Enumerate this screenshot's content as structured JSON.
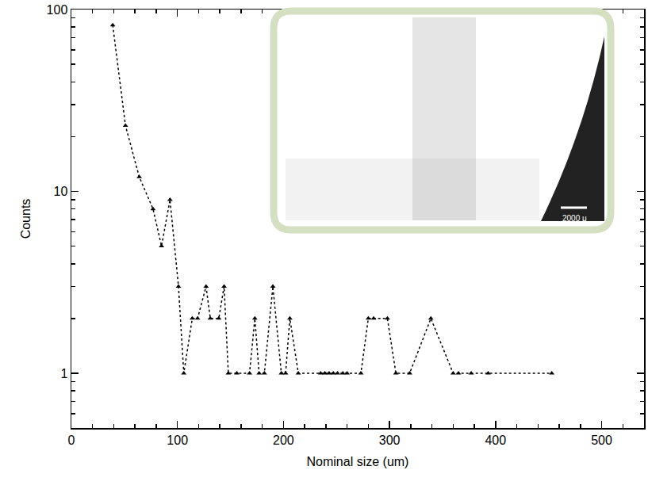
{
  "chart_data": {
    "type": "line",
    "x": [
      39,
      51,
      64,
      77,
      85,
      93,
      101,
      106,
      114,
      119,
      127,
      131,
      139,
      144,
      148,
      156,
      168,
      173,
      177,
      182,
      190,
      198,
      202,
      206,
      214,
      235,
      239,
      243,
      247,
      251,
      256,
      260,
      273,
      280,
      285,
      298,
      306,
      319,
      339,
      360,
      365,
      377,
      393,
      453
    ],
    "values": [
      82,
      23,
      12,
      8,
      5,
      9,
      3,
      1,
      2,
      2,
      3,
      2,
      2,
      3,
      1,
      1,
      1,
      2,
      1,
      1,
      3,
      1,
      1,
      2,
      1,
      1,
      1,
      1,
      1,
      1,
      1,
      1,
      1,
      2,
      2,
      2,
      1,
      1,
      2,
      1,
      1,
      1,
      1,
      1
    ],
    "xlabel": "Nominal size (um)",
    "ylabel": "Counts",
    "xlim": [
      0,
      540
    ],
    "xticks": [
      0,
      100,
      200,
      300,
      400,
      500
    ],
    "ylim": [
      0.5,
      100
    ],
    "yticks": [
      1,
      10,
      100
    ],
    "log": "y",
    "marker": "triangle",
    "line_style": "dotted",
    "color": "#000000",
    "annotations": [
      "2000 μ"
    ]
  }
}
